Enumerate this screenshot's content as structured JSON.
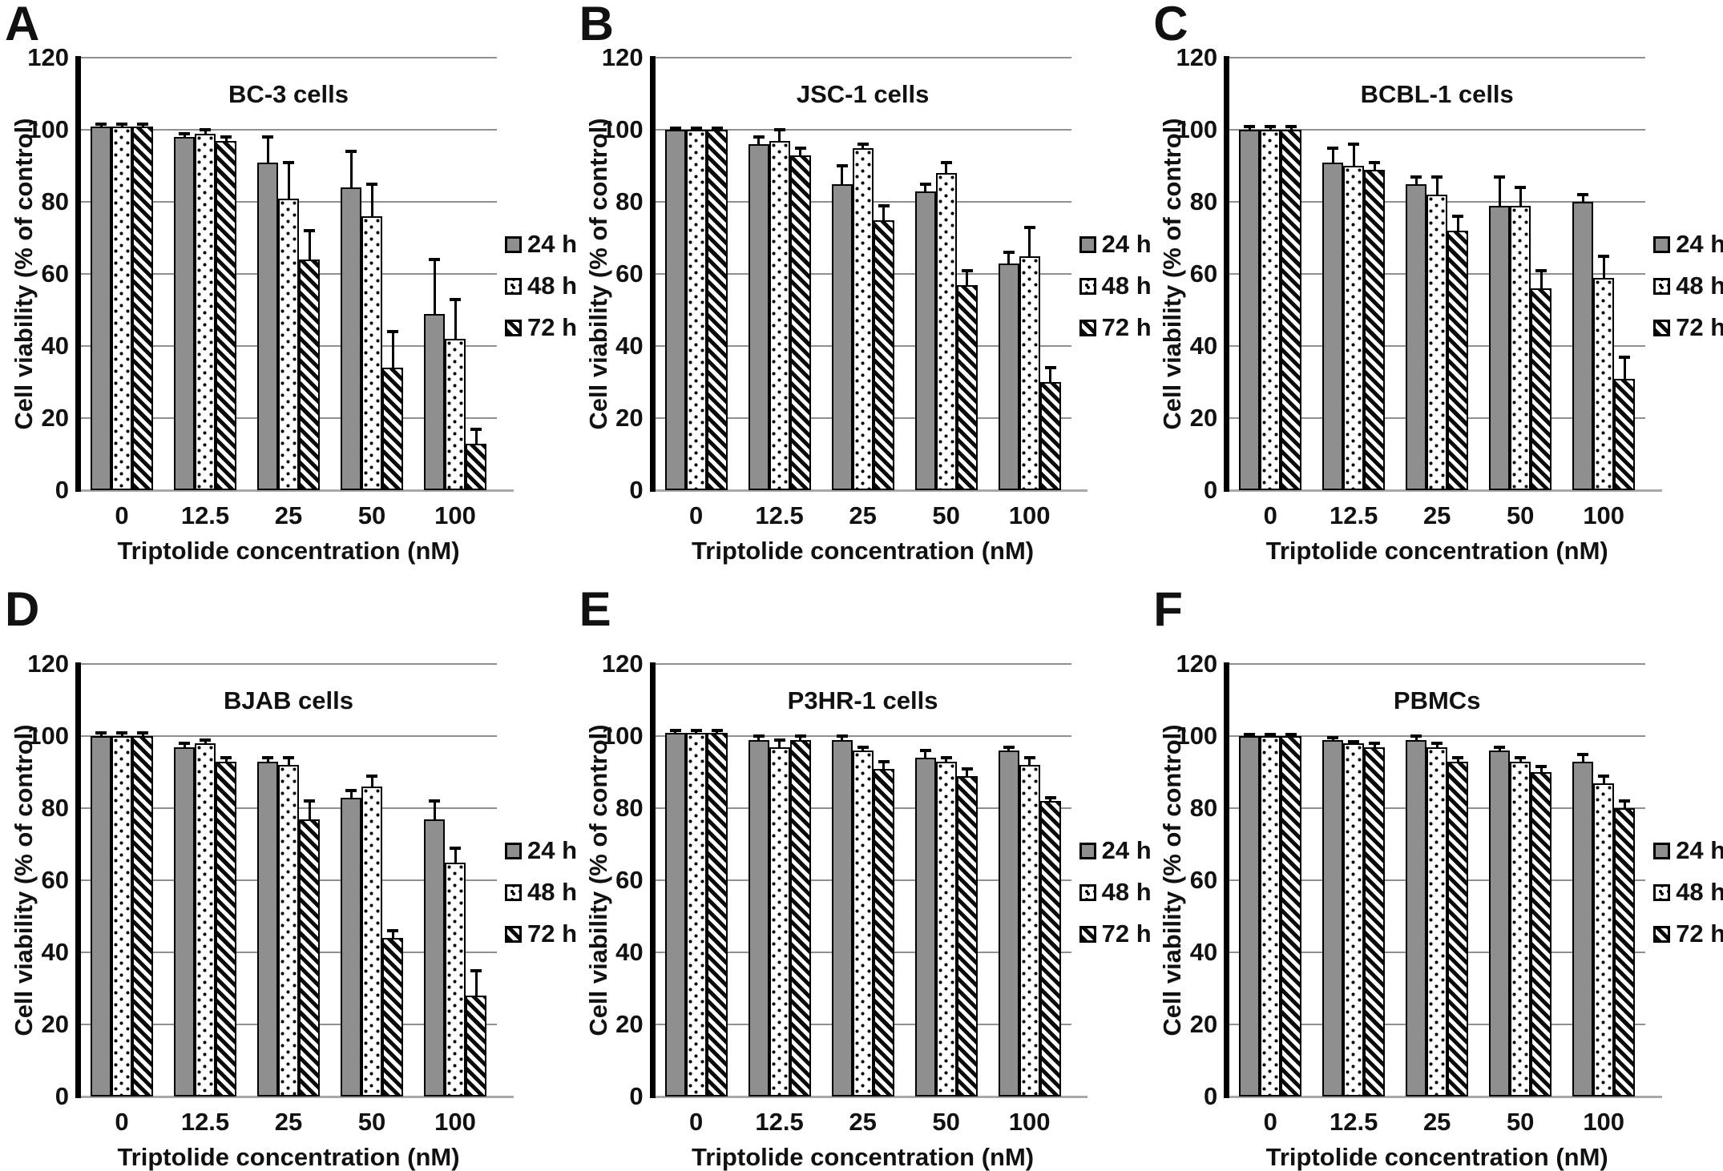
{
  "figure": {
    "ylabel": "Cell viability (% of control)",
    "xlabel": "Triptolide concentration (nM)",
    "legend_labels": [
      "24 h",
      "48 h",
      "72 h"
    ],
    "y_ticks": [
      0,
      20,
      40,
      60,
      80,
      100,
      120
    ],
    "colors": {
      "bar_gray": "#8f8f8f",
      "gridline": "#8f8f8f",
      "baseline": "#a8a8a8",
      "axis": "#000000",
      "background": "#ffffff",
      "text": "#111111"
    }
  },
  "chart_data": [
    {
      "type": "bar",
      "panel_label": "A",
      "title": "BC-3 cells",
      "categories": [
        "0",
        "12.5",
        "25",
        "50",
        "100"
      ],
      "xlabel": "Triptolide concentration (nM)",
      "ylabel": "Cell viability (% of control)",
      "ylim": [
        0,
        120
      ],
      "grid": true,
      "legend_position": "right",
      "series": [
        {
          "name": "24 h",
          "pattern": "gray-solid",
          "values": [
            101,
            98,
            91,
            84,
            49
          ],
          "errors": [
            0.5,
            1,
            7,
            10,
            15
          ]
        },
        {
          "name": "48 h",
          "pattern": "white-dotted",
          "values": [
            101,
            99,
            81,
            76,
            42
          ],
          "errors": [
            0.5,
            1,
            10,
            9,
            11
          ]
        },
        {
          "name": "72 h",
          "pattern": "black-diagonal-hatch",
          "values": [
            101,
            97,
            64,
            34,
            13
          ],
          "errors": [
            0.5,
            1,
            8,
            10,
            4
          ]
        }
      ]
    },
    {
      "type": "bar",
      "panel_label": "B",
      "title": "JSC-1 cells",
      "categories": [
        "0",
        "12.5",
        "25",
        "50",
        "100"
      ],
      "xlabel": "Triptolide concentration (nM)",
      "ylabel": "Cell viability (% of control)",
      "ylim": [
        0,
        120
      ],
      "grid": true,
      "legend_position": "right",
      "series": [
        {
          "name": "24 h",
          "pattern": "gray-solid",
          "values": [
            100,
            96,
            85,
            83,
            63
          ],
          "errors": [
            0.5,
            2,
            5,
            2,
            3
          ]
        },
        {
          "name": "48 h",
          "pattern": "white-dotted",
          "values": [
            100,
            97,
            95,
            88,
            65
          ],
          "errors": [
            0.5,
            3,
            1,
            3,
            8
          ]
        },
        {
          "name": "72 h",
          "pattern": "black-diagonal-hatch",
          "values": [
            100,
            93,
            75,
            57,
            30
          ],
          "errors": [
            0.5,
            2,
            4,
            4,
            4
          ]
        }
      ]
    },
    {
      "type": "bar",
      "panel_label": "C",
      "title": "BCBL-1 cells",
      "categories": [
        "0",
        "12.5",
        "25",
        "50",
        "100"
      ],
      "xlabel": "Triptolide concentration (nM)",
      "ylabel": "Cell viability (% of control)",
      "ylim": [
        0,
        120
      ],
      "grid": true,
      "legend_position": "right",
      "series": [
        {
          "name": "24 h",
          "pattern": "gray-solid",
          "values": [
            100,
            91,
            85,
            79,
            80
          ],
          "errors": [
            1,
            4,
            2,
            8,
            2
          ]
        },
        {
          "name": "48 h",
          "pattern": "white-dotted",
          "values": [
            100,
            90,
            82,
            79,
            59
          ],
          "errors": [
            1,
            6,
            5,
            5,
            6
          ]
        },
        {
          "name": "72 h",
          "pattern": "black-diagonal-hatch",
          "values": [
            100,
            89,
            72,
            56,
            31
          ],
          "errors": [
            1,
            2,
            4,
            5,
            6
          ]
        }
      ]
    },
    {
      "type": "bar",
      "panel_label": "D",
      "title": "BJAB cells",
      "categories": [
        "0",
        "12.5",
        "25",
        "50",
        "100"
      ],
      "xlabel": "Triptolide concentration (nM)",
      "ylabel": "Cell viability (% of control)",
      "ylim": [
        0,
        120
      ],
      "grid": true,
      "legend_position": "right",
      "series": [
        {
          "name": "24 h",
          "pattern": "gray-solid",
          "values": [
            100,
            97,
            93,
            83,
            77
          ],
          "errors": [
            1,
            1,
            1,
            2,
            5
          ]
        },
        {
          "name": "48 h",
          "pattern": "white-dotted",
          "values": [
            100,
            98,
            92,
            86,
            65
          ],
          "errors": [
            1,
            1,
            2,
            3,
            4
          ]
        },
        {
          "name": "72 h",
          "pattern": "black-diagonal-hatch",
          "values": [
            100,
            93,
            77,
            44,
            28
          ],
          "errors": [
            1,
            1,
            5,
            2,
            7
          ]
        }
      ]
    },
    {
      "type": "bar",
      "panel_label": "E",
      "title": "P3HR-1 cells",
      "categories": [
        "0",
        "12.5",
        "25",
        "50",
        "100"
      ],
      "xlabel": "Triptolide concentration (nM)",
      "ylabel": "Cell viability (% of control)",
      "ylim": [
        0,
        120
      ],
      "grid": true,
      "legend_position": "right",
      "series": [
        {
          "name": "24 h",
          "pattern": "gray-solid",
          "values": [
            101,
            99,
            99,
            94,
            96
          ],
          "errors": [
            0.5,
            1,
            1,
            2,
            1
          ]
        },
        {
          "name": "48 h",
          "pattern": "white-dotted",
          "values": [
            101,
            97,
            96,
            93,
            92
          ],
          "errors": [
            0.5,
            2,
            1,
            1,
            2
          ]
        },
        {
          "name": "72 h",
          "pattern": "black-diagonal-hatch",
          "values": [
            101,
            99,
            91,
            89,
            82
          ],
          "errors": [
            0.5,
            1,
            2,
            2,
            1
          ]
        }
      ]
    },
    {
      "type": "bar",
      "panel_label": "F",
      "title": "PBMCs",
      "categories": [
        "0",
        "12.5",
        "25",
        "50",
        "100"
      ],
      "xlabel": "Triptolide concentration (nM)",
      "ylabel": "Cell viability (% of control)",
      "ylim": [
        0,
        120
      ],
      "grid": true,
      "legend_position": "right",
      "series": [
        {
          "name": "24 h",
          "pattern": "gray-solid",
          "values": [
            100,
            99,
            99,
            96,
            93
          ],
          "errors": [
            0.5,
            0.5,
            1,
            1,
            2
          ]
        },
        {
          "name": "48 h",
          "pattern": "white-dotted",
          "values": [
            100,
            98,
            97,
            93,
            87
          ],
          "errors": [
            0.5,
            0.5,
            1,
            1,
            2
          ]
        },
        {
          "name": "72 h",
          "pattern": "black-diagonal-hatch",
          "values": [
            100,
            97,
            93,
            90,
            80
          ],
          "errors": [
            0.5,
            1,
            1,
            1.5,
            2
          ]
        }
      ]
    }
  ]
}
